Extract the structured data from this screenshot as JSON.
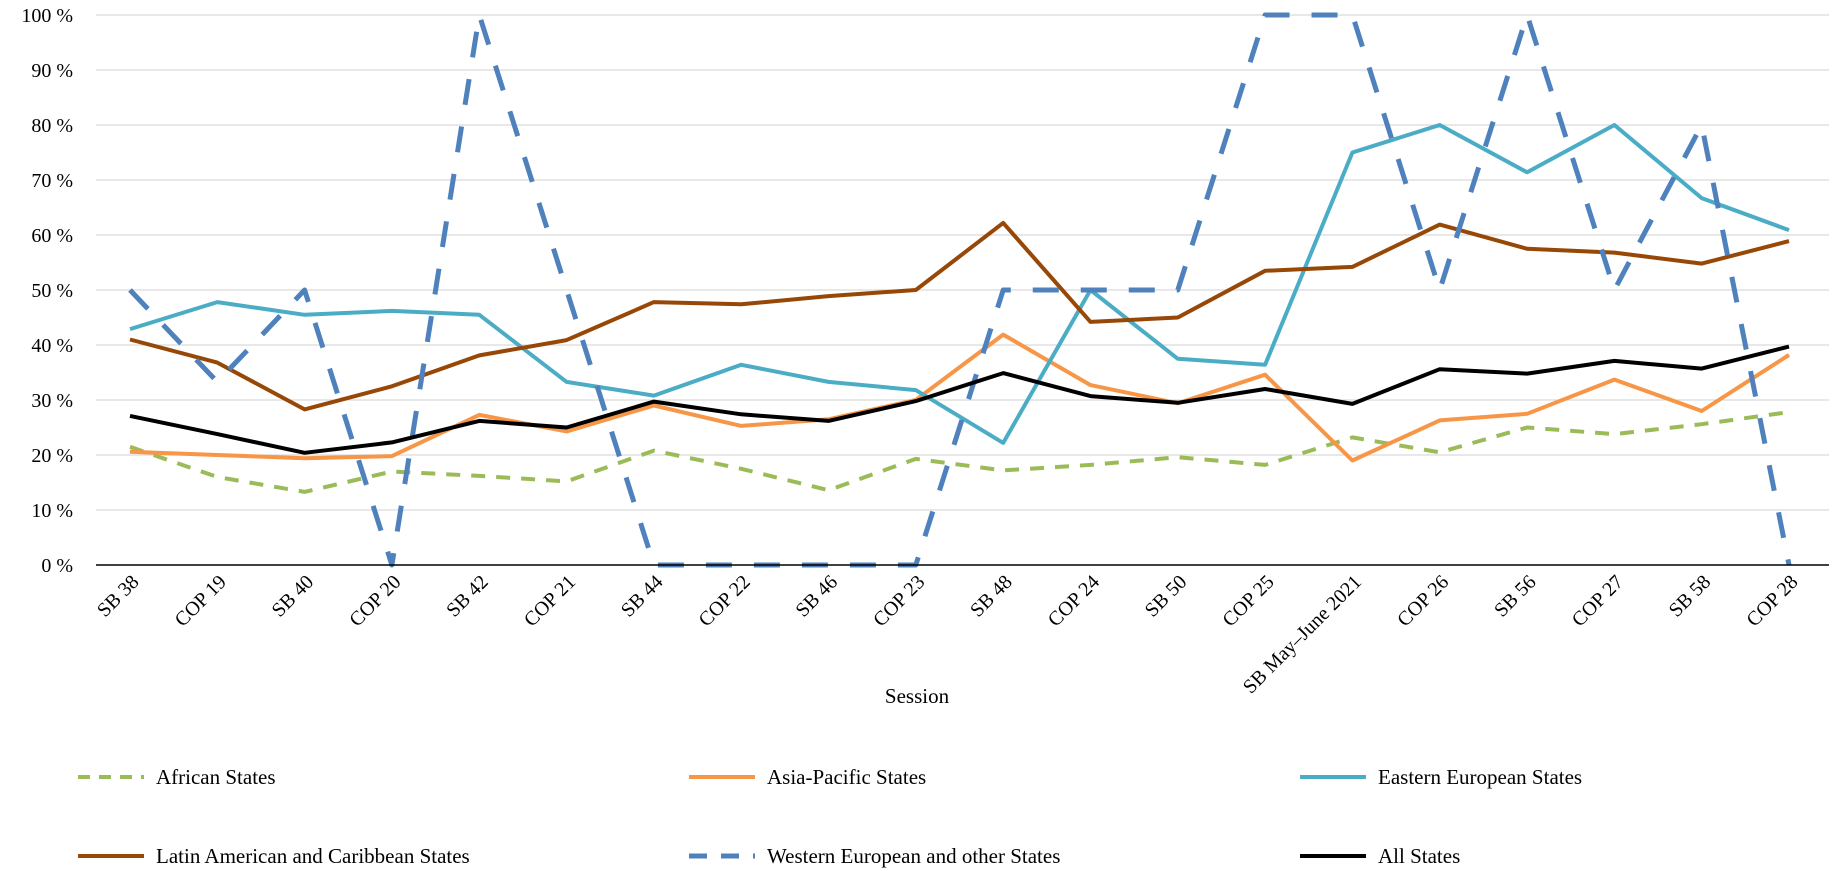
{
  "chart_data": {
    "type": "line",
    "xlabel": "Session",
    "ylabel": "",
    "ylim": [
      0,
      100
    ],
    "yticks": [
      "0 %",
      "10 %",
      "20 %",
      "30 %",
      "40 %",
      "50 %",
      "60 %",
      "70 %",
      "80 %",
      "90 %",
      "100 %"
    ],
    "grid": "horizontal",
    "legend_position": "bottom",
    "categories": [
      "SB 38",
      "COP 19",
      "SB 40",
      "COP 20",
      "SB 42",
      "COP 21",
      "SB 44",
      "COP 22",
      "SB 46",
      "COP 23",
      "SB 48",
      "COP 24",
      "SB 50",
      "COP 25",
      "SB May–June 2021",
      "COP 26",
      "SB 56",
      "COP 27",
      "SB 58",
      "COP 28"
    ],
    "series": [
      {
        "name": "African States",
        "color": "#9BBB59",
        "dash": "dash-short",
        "values": [
          21.5,
          16,
          13.3,
          17,
          16.2,
          15.2,
          20.8,
          17.5,
          13.6,
          19.3,
          17.2,
          18.2,
          19.6,
          18.2,
          23.2,
          20.5,
          25,
          23.8,
          25.6,
          27.8
        ]
      },
      {
        "name": "Asia-Pacific States",
        "color": "#F79646",
        "dash": "solid",
        "values": [
          20.6,
          20,
          19.4,
          19.8,
          27.3,
          24.3,
          29,
          25.3,
          26.5,
          30,
          41.9,
          32.7,
          29.4,
          34.6,
          19,
          26.3,
          27.5,
          33.7,
          28,
          38.2
        ]
      },
      {
        "name": "Eastern European States",
        "color": "#4BACC6",
        "dash": "solid",
        "values": [
          42.9,
          47.8,
          45.5,
          46.2,
          45.5,
          33.3,
          30.8,
          36.4,
          33.3,
          31.8,
          22.2,
          50,
          37.5,
          36.4,
          75,
          80,
          71.4,
          80,
          66.7,
          60.9
        ]
      },
      {
        "name": "Latin American and Caribbean States",
        "color": "#974706",
        "dash": "solid",
        "values": [
          41,
          36.8,
          28.3,
          32.5,
          38.1,
          40.9,
          47.8,
          47.4,
          48.9,
          50,
          62.2,
          44.2,
          45,
          53.5,
          54.2,
          61.9,
          57.5,
          56.8,
          54.8,
          58.9
        ]
      },
      {
        "name": "Western European and other States",
        "color": "#4F81BD",
        "dash": "dash-long",
        "values": [
          50,
          33.3,
          50,
          0,
          100,
          50,
          0,
          0,
          0,
          0,
          50,
          50,
          50,
          100,
          100,
          50,
          100,
          50,
          80,
          0
        ]
      },
      {
        "name": "All States",
        "color": "#000000",
        "dash": "solid",
        "values": [
          27.1,
          23.8,
          20.4,
          22.3,
          26.2,
          25,
          29.7,
          27.4,
          26.2,
          29.8,
          34.9,
          30.7,
          29.5,
          32,
          29.3,
          35.6,
          34.8,
          37.1,
          35.7,
          39.7
        ]
      }
    ]
  }
}
